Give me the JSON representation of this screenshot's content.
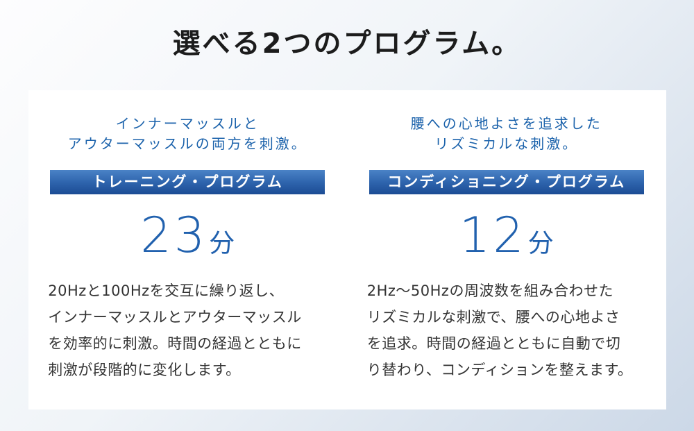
{
  "page": {
    "title": "選べる2つのプログラム。",
    "colors": {
      "accent_blue": "#1b62ab",
      "duration_blue": "#2161ae",
      "banner_gradient_top": "#4a82c6",
      "banner_gradient_bottom": "#1c4c94",
      "background_top_left": "#fdfdfe",
      "background_bottom_right": "#ccd8e7",
      "card_background": "#ffffff",
      "body_text": "#333333"
    }
  },
  "programs": [
    {
      "subtitle": "インナーマッスルと\nアウターマッスルの両方を刺激。",
      "banner": "トレーニング・プログラム",
      "duration_value": "23",
      "duration_unit": "分",
      "description": "20Hzと100Hzを交互に繰り返し、\nインナーマッスルとアウターマッスル\nを効率的に刺激。時間の経過とともに\n刺激が段階的に変化します。"
    },
    {
      "subtitle": "腰への心地よさを追求した\nリズミカルな刺激。",
      "banner": "コンディショニング・プログラム",
      "duration_value": "12",
      "duration_unit": "分",
      "description": "2Hz〜50Hzの周波数を組み合わせた\nリズミカルな刺激で、腰への心地よさ\nを追求。時間の経過とともに自動で切\nり替わり、コンディションを整えます。"
    }
  ]
}
